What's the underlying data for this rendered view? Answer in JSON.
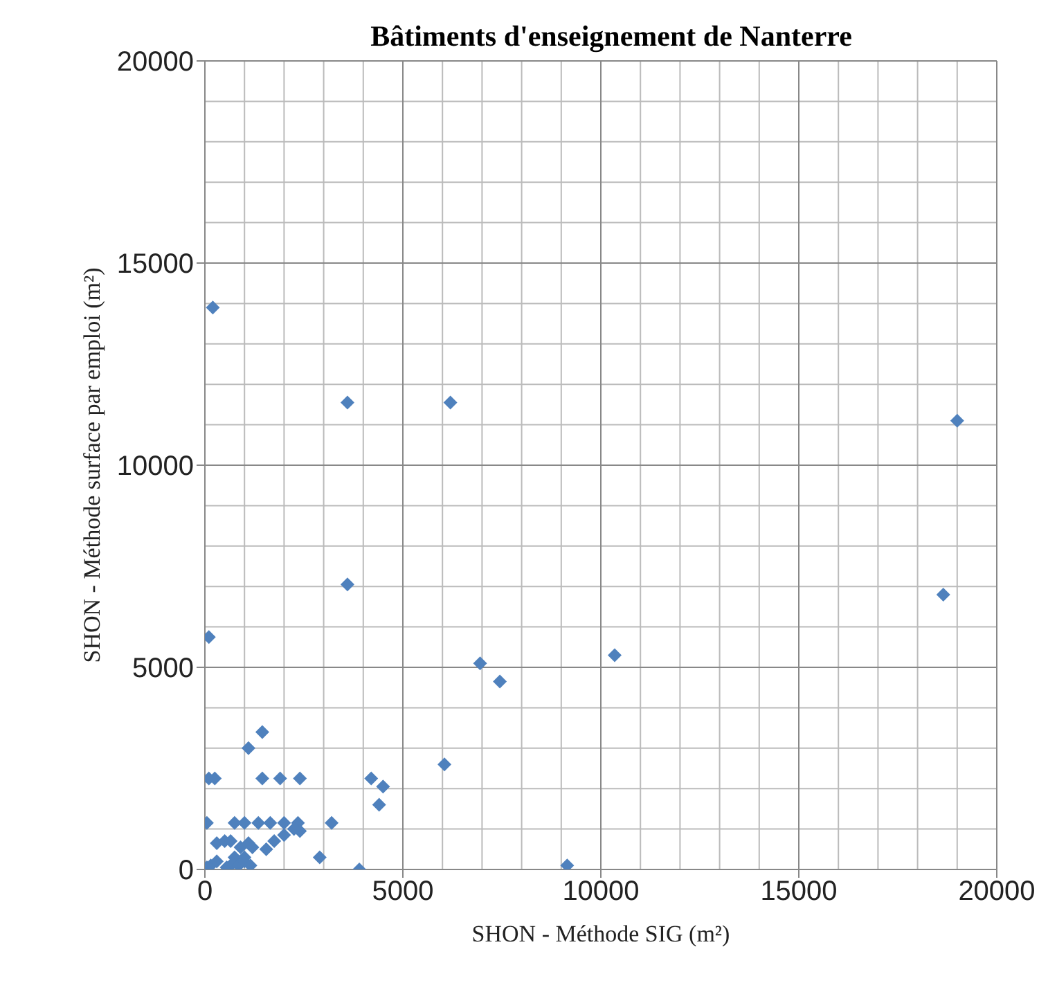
{
  "chart_data": {
    "type": "scatter",
    "title": "Bâtiments d'enseignement de Nanterre",
    "xlabel": "SHON - Méthode SIG (m²)",
    "ylabel": "SHON - Méthode surface par emploi (m²)",
    "x": [
      200,
      3600,
      6200,
      3600,
      19000,
      18650,
      100,
      1450,
      1100,
      100,
      250,
      1450,
      1900,
      2400,
      4200,
      4500,
      4400,
      3200,
      2900,
      3900,
      6950,
      7450,
      10350,
      6050,
      9150,
      50,
      750,
      1000,
      1350,
      1650,
      2000,
      2350,
      2400,
      300,
      500,
      650,
      1100,
      1550,
      1750,
      2000,
      2250,
      750,
      1000,
      900,
      1200,
      50,
      150,
      550,
      700,
      850,
      1000,
      1150,
      300
    ],
    "values": [
      13900,
      11550,
      11550,
      7050,
      11100,
      6800,
      5750,
      3400,
      3000,
      2250,
      2250,
      2250,
      2250,
      2250,
      2250,
      2050,
      1600,
      1150,
      300,
      0,
      5100,
      4650,
      5300,
      2600,
      100,
      1150,
      1150,
      1150,
      1150,
      1150,
      1150,
      1150,
      950,
      650,
      700,
      700,
      650,
      500,
      700,
      850,
      1000,
      300,
      300,
      550,
      550,
      50,
      100,
      50,
      150,
      100,
      200,
      100,
      200
    ],
    "color": "#4f81bd",
    "marker": "diamond",
    "xlim": [
      0,
      20000
    ],
    "xticks": [
      0,
      5000,
      10000,
      15000,
      20000
    ],
    "ylim": [
      0,
      20000
    ],
    "yticks": [
      0,
      5000,
      10000,
      15000,
      20000
    ],
    "grid": true
  }
}
